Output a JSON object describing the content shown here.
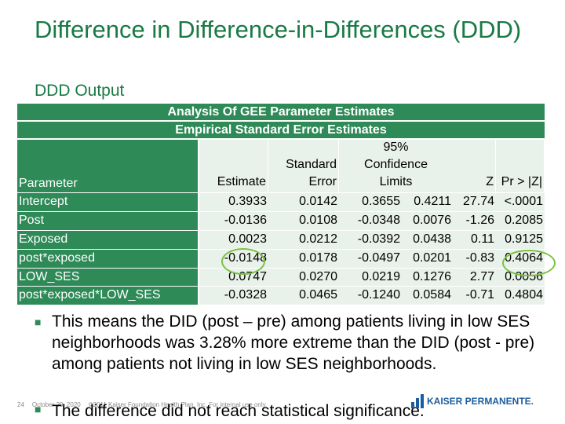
{
  "title": "Difference in Difference-in-Differences (DDD)",
  "subtitle": "DDD Output",
  "table": {
    "title1": "Analysis Of GEE Parameter Estimates",
    "title2": "Empirical Standard Error Estimates",
    "headers": {
      "parameter": "Parameter",
      "estimate": "Estimate",
      "stderr_1": "Standard",
      "stderr_2": "Error",
      "ci_1": "95%",
      "ci_2": "Confidence",
      "ci_3": "Limits",
      "z": "Z",
      "p": "Pr > |Z|"
    },
    "rows": [
      {
        "param": "Intercept",
        "estimate": "0.3933",
        "se": "0.0142",
        "lo": "0.3655",
        "hi": "0.4211",
        "z": "27.74",
        "p": "<.0001"
      },
      {
        "param": "Post",
        "estimate": "-0.0136",
        "se": "0.0108",
        "lo": "-0.0348",
        "hi": "0.0076",
        "z": "-1.26",
        "p": "0.2085"
      },
      {
        "param": "Exposed",
        "estimate": "0.0023",
        "se": "0.0212",
        "lo": "-0.0392",
        "hi": "0.0438",
        "z": "0.11",
        "p": "0.9125"
      },
      {
        "param": "post*exposed",
        "estimate": "-0.0148",
        "se": "0.0178",
        "lo": "-0.0497",
        "hi": "0.0201",
        "z": "-0.83",
        "p": "0.4064"
      },
      {
        "param": "LOW_SES",
        "estimate": "0.0747",
        "se": "0.0270",
        "lo": "0.0219",
        "hi": "0.1276",
        "z": "2.77",
        "p": "0.0056"
      },
      {
        "param": "post*exposed*LOW_SES",
        "estimate": "-0.0328",
        "se": "0.0465",
        "lo": "-0.1240",
        "hi": "0.0584",
        "z": "-0.71",
        "p": "0.4804"
      }
    ]
  },
  "bullets": [
    "This means the DID (post – pre) among patients living in low SES neighborhoods was 3.28% more extreme than the DID (post - pre) among patients not living in low SES neighborhoods.",
    "The difference did not reach statistical significance."
  ],
  "footer": {
    "page": "24",
    "date": "October 29, 2020",
    "copyright": "©2011 Kaiser Foundation Health Plan, Inc. For internal use only."
  },
  "logo_text": "KAISER PERMANENTE.",
  "colors": {
    "green": "#2e8a57",
    "title_green": "#1a7a45",
    "highlight": "#7cc043"
  }
}
